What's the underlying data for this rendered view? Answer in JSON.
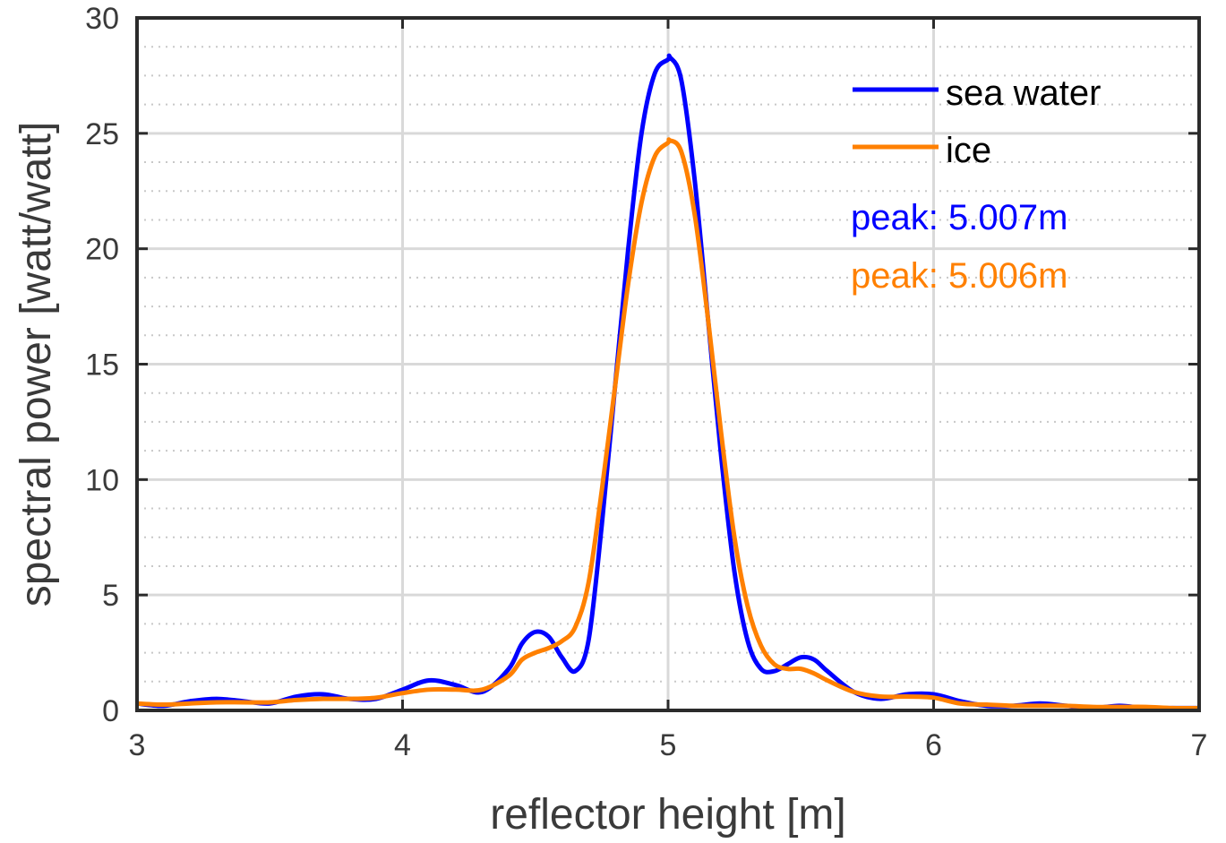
{
  "chart_data": {
    "type": "line",
    "title": "",
    "xlabel": "reflector height [m]",
    "ylabel": "spectral power [watt/watt]",
    "xlim": [
      3,
      7
    ],
    "ylim": [
      0,
      30
    ],
    "xticks": [
      3,
      4,
      5,
      6,
      7
    ],
    "yticks": [
      0,
      5,
      10,
      15,
      20,
      25,
      30
    ],
    "grid": true,
    "minor_grid_y": true,
    "legend_position": "top-right",
    "series": [
      {
        "name": "sea water",
        "color": "#0000ff",
        "x": [
          3.0,
          3.1,
          3.2,
          3.3,
          3.4,
          3.5,
          3.6,
          3.7,
          3.8,
          3.9,
          4.0,
          4.1,
          4.2,
          4.3,
          4.4,
          4.45,
          4.5,
          4.55,
          4.6,
          4.65,
          4.7,
          4.75,
          4.8,
          4.85,
          4.9,
          4.95,
          5.0,
          5.007,
          5.05,
          5.1,
          5.15,
          5.2,
          5.25,
          5.3,
          5.35,
          5.4,
          5.45,
          5.5,
          5.55,
          5.6,
          5.7,
          5.8,
          5.9,
          6.0,
          6.1,
          6.2,
          6.3,
          6.4,
          6.5,
          6.6,
          6.7,
          6.8,
          6.9,
          7.0
        ],
        "y": [
          0.3,
          0.2,
          0.4,
          0.5,
          0.4,
          0.3,
          0.6,
          0.7,
          0.5,
          0.5,
          0.9,
          1.3,
          1.1,
          0.8,
          1.8,
          2.9,
          3.4,
          3.2,
          2.3,
          1.7,
          3.0,
          8.0,
          14.0,
          20.0,
          25.0,
          27.6,
          28.2,
          28.3,
          27.3,
          23.0,
          17.0,
          11.0,
          6.0,
          3.0,
          1.8,
          1.7,
          2.0,
          2.3,
          2.2,
          1.7,
          0.8,
          0.5,
          0.7,
          0.7,
          0.4,
          0.2,
          0.2,
          0.3,
          0.2,
          0.1,
          0.2,
          0.1,
          0.1,
          0.1
        ]
      },
      {
        "name": "ice",
        "color": "#ff8000",
        "x": [
          3.0,
          3.1,
          3.2,
          3.3,
          3.4,
          3.5,
          3.6,
          3.7,
          3.8,
          3.9,
          4.0,
          4.1,
          4.2,
          4.3,
          4.4,
          4.45,
          4.5,
          4.55,
          4.6,
          4.65,
          4.7,
          4.75,
          4.8,
          4.85,
          4.9,
          4.95,
          5.0,
          5.006,
          5.05,
          5.1,
          5.15,
          5.2,
          5.25,
          5.3,
          5.35,
          5.4,
          5.45,
          5.5,
          5.55,
          5.6,
          5.7,
          5.8,
          5.9,
          6.0,
          6.1,
          6.2,
          6.3,
          6.4,
          6.5,
          6.6,
          6.7,
          6.8,
          6.9,
          7.0
        ],
        "y": [
          0.3,
          0.25,
          0.3,
          0.35,
          0.35,
          0.35,
          0.45,
          0.5,
          0.5,
          0.55,
          0.75,
          0.9,
          0.9,
          0.9,
          1.5,
          2.2,
          2.5,
          2.7,
          3.0,
          3.6,
          5.5,
          9.5,
          14.0,
          18.5,
          22.0,
          24.0,
          24.6,
          24.7,
          24.2,
          21.5,
          17.0,
          12.0,
          7.5,
          4.5,
          2.8,
          2.0,
          1.8,
          1.8,
          1.6,
          1.3,
          0.8,
          0.6,
          0.6,
          0.55,
          0.3,
          0.25,
          0.2,
          0.2,
          0.2,
          0.15,
          0.15,
          0.15,
          0.1,
          0.1
        ]
      }
    ],
    "annotations": [
      {
        "text": "peak: 5.007m",
        "color": "#0000ff"
      },
      {
        "text": "peak: 5.006m",
        "color": "#ff8000"
      }
    ]
  }
}
